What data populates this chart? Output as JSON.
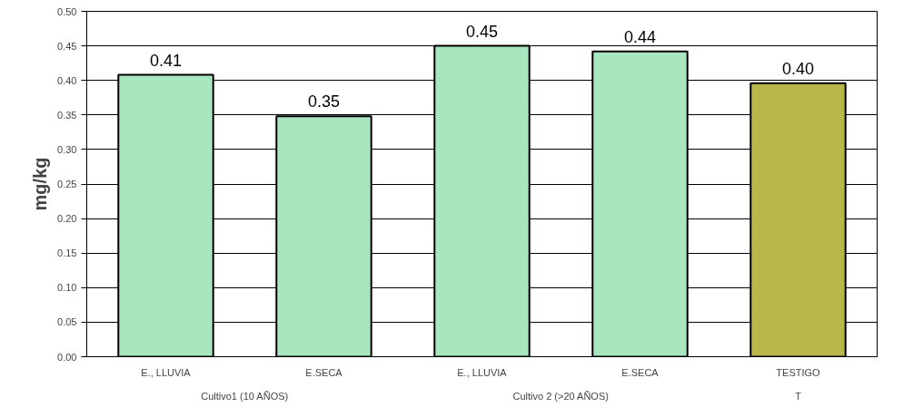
{
  "chart_data": {
    "type": "bar",
    "ylabel": "mg/kg",
    "categories": [
      "E., LLUVIA",
      "E.SECA",
      "E., LLUVIA",
      "E.SECA",
      "TESTIGO"
    ],
    "values": [
      0.408,
      0.348,
      0.45,
      0.442,
      0.396
    ],
    "value_labels": [
      "0.41",
      "0.35",
      "0.45",
      "0.44",
      "0.40"
    ],
    "colors": [
      "#a8e6bf",
      "#a8e6bf",
      "#a8e6bf",
      "#a8e6bf",
      "#b8b84a"
    ],
    "annotations": [
      "Cultivo1 (10 AÑOS)",
      "Cultivo 2 (>20 AÑOS)",
      "T"
    ],
    "ylim": [
      0,
      0.5
    ],
    "yticks": [
      {
        "value": 0,
        "label": "0.00"
      },
      {
        "value": 0.05,
        "label": "0.05"
      },
      {
        "value": 0.1,
        "label": "0.10"
      },
      {
        "value": 0.15,
        "label": "0.15"
      },
      {
        "value": 0.2,
        "label": "0.20"
      },
      {
        "value": 0.25,
        "label": "0.25"
      },
      {
        "value": 0.3,
        "label": "0.30"
      },
      {
        "value": 0.35,
        "label": "0.35"
      },
      {
        "value": 0.4,
        "label": "0.40"
      },
      {
        "value": 0.45,
        "label": "0.45"
      },
      {
        "value": 0.5,
        "label": "0.50"
      }
    ],
    "grid": "y"
  }
}
